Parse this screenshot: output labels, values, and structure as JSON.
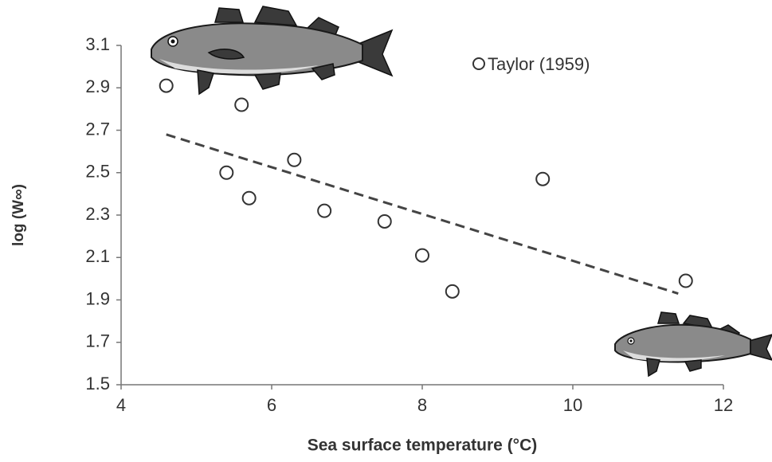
{
  "chart_data": {
    "type": "scatter",
    "x_label": "Sea surface temperature (°C)",
    "y_label": "log (W∞)",
    "xlim": [
      4,
      12
    ],
    "xticks": [
      4,
      6,
      8,
      10,
      12
    ],
    "ylim": [
      1.5,
      3.1
    ],
    "yticks": [
      1.5,
      1.7,
      1.9,
      2.1,
      2.3,
      2.5,
      2.7,
      2.9,
      3.1
    ],
    "grid": false,
    "legend": "top-right",
    "series": [
      {
        "name": "Taylor (1959)",
        "color": "#333333",
        "x": [
          4.6,
          5.6,
          5.4,
          5.7,
          6.3,
          6.7,
          7.5,
          8.0,
          8.4,
          9.6,
          11.5
        ],
        "values": [
          2.91,
          2.82,
          2.5,
          2.38,
          2.56,
          2.32,
          2.27,
          2.11,
          1.94,
          2.47,
          1.99
        ]
      }
    ],
    "trendline": {
      "color": "#444444",
      "x": [
        4.6,
        11.4
      ],
      "values": [
        2.68,
        1.93
      ]
    }
  }
}
